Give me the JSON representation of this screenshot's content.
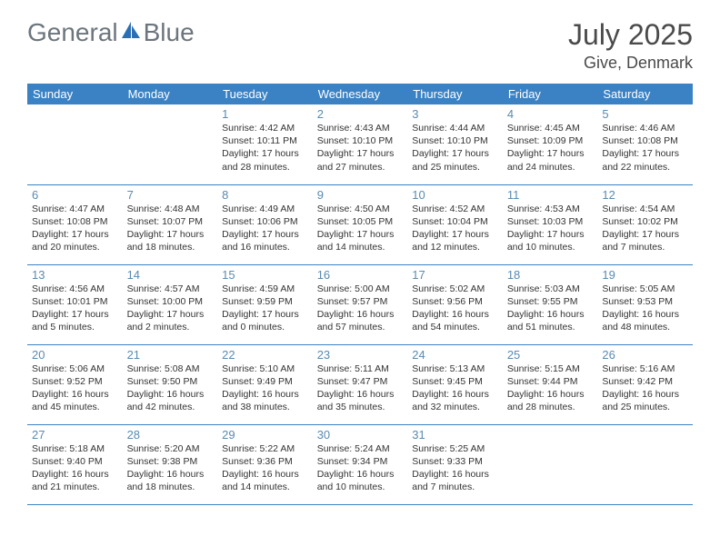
{
  "logo": {
    "text1": "General",
    "text2": "Blue"
  },
  "title": "July 2025",
  "location": "Give, Denmark",
  "colors": {
    "header_bg": "#3b82c4",
    "header_text": "#ffffff",
    "day_num": "#5a8bb0",
    "border": "#3b82c4",
    "logo_gray": "#6c757d",
    "logo_blue": "#2a6fb5"
  },
  "day_headers": [
    "Sunday",
    "Monday",
    "Tuesday",
    "Wednesday",
    "Thursday",
    "Friday",
    "Saturday"
  ],
  "weeks": [
    [
      null,
      null,
      {
        "n": "1",
        "sr": "4:42 AM",
        "ss": "10:11 PM",
        "dh": "17",
        "dm": "28"
      },
      {
        "n": "2",
        "sr": "4:43 AM",
        "ss": "10:10 PM",
        "dh": "17",
        "dm": "27"
      },
      {
        "n": "3",
        "sr": "4:44 AM",
        "ss": "10:10 PM",
        "dh": "17",
        "dm": "25"
      },
      {
        "n": "4",
        "sr": "4:45 AM",
        "ss": "10:09 PM",
        "dh": "17",
        "dm": "24"
      },
      {
        "n": "5",
        "sr": "4:46 AM",
        "ss": "10:08 PM",
        "dh": "17",
        "dm": "22"
      }
    ],
    [
      {
        "n": "6",
        "sr": "4:47 AM",
        "ss": "10:08 PM",
        "dh": "17",
        "dm": "20"
      },
      {
        "n": "7",
        "sr": "4:48 AM",
        "ss": "10:07 PM",
        "dh": "17",
        "dm": "18"
      },
      {
        "n": "8",
        "sr": "4:49 AM",
        "ss": "10:06 PM",
        "dh": "17",
        "dm": "16"
      },
      {
        "n": "9",
        "sr": "4:50 AM",
        "ss": "10:05 PM",
        "dh": "17",
        "dm": "14"
      },
      {
        "n": "10",
        "sr": "4:52 AM",
        "ss": "10:04 PM",
        "dh": "17",
        "dm": "12"
      },
      {
        "n": "11",
        "sr": "4:53 AM",
        "ss": "10:03 PM",
        "dh": "17",
        "dm": "10"
      },
      {
        "n": "12",
        "sr": "4:54 AM",
        "ss": "10:02 PM",
        "dh": "17",
        "dm": "7"
      }
    ],
    [
      {
        "n": "13",
        "sr": "4:56 AM",
        "ss": "10:01 PM",
        "dh": "17",
        "dm": "5"
      },
      {
        "n": "14",
        "sr": "4:57 AM",
        "ss": "10:00 PM",
        "dh": "17",
        "dm": "2"
      },
      {
        "n": "15",
        "sr": "4:59 AM",
        "ss": "9:59 PM",
        "dh": "17",
        "dm": "0"
      },
      {
        "n": "16",
        "sr": "5:00 AM",
        "ss": "9:57 PM",
        "dh": "16",
        "dm": "57"
      },
      {
        "n": "17",
        "sr": "5:02 AM",
        "ss": "9:56 PM",
        "dh": "16",
        "dm": "54"
      },
      {
        "n": "18",
        "sr": "5:03 AM",
        "ss": "9:55 PM",
        "dh": "16",
        "dm": "51"
      },
      {
        "n": "19",
        "sr": "5:05 AM",
        "ss": "9:53 PM",
        "dh": "16",
        "dm": "48"
      }
    ],
    [
      {
        "n": "20",
        "sr": "5:06 AM",
        "ss": "9:52 PM",
        "dh": "16",
        "dm": "45"
      },
      {
        "n": "21",
        "sr": "5:08 AM",
        "ss": "9:50 PM",
        "dh": "16",
        "dm": "42"
      },
      {
        "n": "22",
        "sr": "5:10 AM",
        "ss": "9:49 PM",
        "dh": "16",
        "dm": "38"
      },
      {
        "n": "23",
        "sr": "5:11 AM",
        "ss": "9:47 PM",
        "dh": "16",
        "dm": "35"
      },
      {
        "n": "24",
        "sr": "5:13 AM",
        "ss": "9:45 PM",
        "dh": "16",
        "dm": "32"
      },
      {
        "n": "25",
        "sr": "5:15 AM",
        "ss": "9:44 PM",
        "dh": "16",
        "dm": "28"
      },
      {
        "n": "26",
        "sr": "5:16 AM",
        "ss": "9:42 PM",
        "dh": "16",
        "dm": "25"
      }
    ],
    [
      {
        "n": "27",
        "sr": "5:18 AM",
        "ss": "9:40 PM",
        "dh": "16",
        "dm": "21"
      },
      {
        "n": "28",
        "sr": "5:20 AM",
        "ss": "9:38 PM",
        "dh": "16",
        "dm": "18"
      },
      {
        "n": "29",
        "sr": "5:22 AM",
        "ss": "9:36 PM",
        "dh": "16",
        "dm": "14"
      },
      {
        "n": "30",
        "sr": "5:24 AM",
        "ss": "9:34 PM",
        "dh": "16",
        "dm": "10"
      },
      {
        "n": "31",
        "sr": "5:25 AM",
        "ss": "9:33 PM",
        "dh": "16",
        "dm": "7"
      },
      null,
      null
    ]
  ],
  "labels": {
    "sunrise": "Sunrise:",
    "sunset": "Sunset:",
    "daylight_prefix": "Daylight:",
    "hours_word": "hours",
    "and_word": "and",
    "minutes_word": "minutes."
  }
}
